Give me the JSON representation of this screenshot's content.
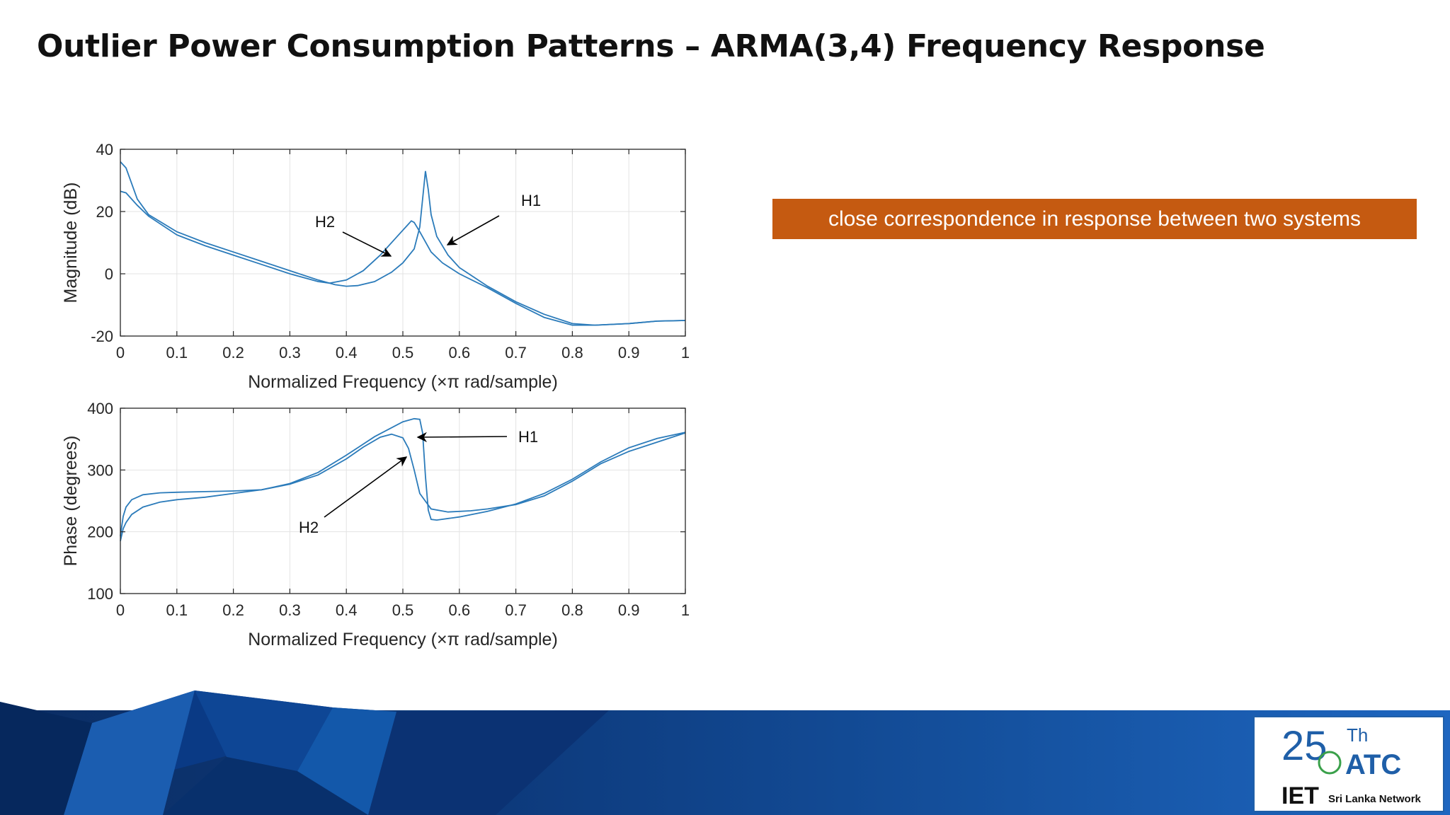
{
  "slide": {
    "title": "Outlier Power Consumption Patterns – ARMA(3,4) Frequency Response",
    "callout": "close correspondence in response between two systems"
  },
  "logo": {
    "number": "25",
    "superscript": "Th",
    "name": "ATC",
    "org": "IET",
    "network": "Sri Lanka Network"
  },
  "colors": {
    "series": "#2b7bba",
    "callout_bg": "#c55a11",
    "footer": "#1a5ca8"
  },
  "chart_data": [
    {
      "type": "line",
      "title": "",
      "xlabel": "Normalized Frequency  (×π rad/sample)",
      "ylabel": "Magnitude (dB)",
      "xlim": [
        0,
        1
      ],
      "ylim": [
        -20,
        40
      ],
      "xticks": [
        0,
        0.1,
        0.2,
        0.3,
        0.4,
        0.5,
        0.6,
        0.7,
        0.8,
        0.9,
        1
      ],
      "yticks": [
        -20,
        0,
        20,
        40
      ],
      "xtick_labels": [
        "0",
        "0.1",
        "0.2",
        "0.3",
        "0.4",
        "0.5",
        "0.6",
        "0.7",
        "0.8",
        "0.9",
        "1"
      ],
      "ytick_labels": [
        "-20",
        "0",
        "20",
        "40"
      ],
      "grid": true,
      "series": [
        {
          "x": [
            0,
            0.01,
            0.03,
            0.05,
            0.1,
            0.15,
            0.2,
            0.25,
            0.3,
            0.35,
            0.38,
            0.4,
            0.42,
            0.45,
            0.48,
            0.5,
            0.52,
            0.53,
            0.54,
            0.545,
            0.55,
            0.56,
            0.58,
            0.6,
            0.65,
            0.7,
            0.75,
            0.8,
            0.84,
            0.9,
            0.95,
            1.0
          ],
          "y": [
            36,
            34,
            24,
            19,
            13.5,
            10,
            7,
            4,
            1,
            -2,
            -3.5,
            -4,
            -3.8,
            -2.5,
            0.5,
            3.5,
            8,
            15,
            33,
            27,
            19,
            12,
            6,
            2,
            -4,
            -9,
            -13,
            -16,
            -16.5,
            -16,
            -15.2,
            -15
          ]
        },
        {
          "x": [
            0,
            0.01,
            0.03,
            0.05,
            0.1,
            0.15,
            0.2,
            0.25,
            0.3,
            0.35,
            0.37,
            0.4,
            0.43,
            0.46,
            0.49,
            0.51,
            0.515,
            0.52,
            0.53,
            0.55,
            0.57,
            0.6,
            0.65,
            0.7,
            0.75,
            0.8,
            0.84,
            0.9,
            0.95,
            1.0
          ],
          "y": [
            26.5,
            26,
            22,
            18.5,
            12.5,
            9,
            6,
            3,
            0,
            -2.5,
            -3,
            -2,
            1,
            6,
            12,
            16,
            17,
            16.5,
            13.5,
            7,
            3.5,
            0,
            -4.5,
            -9.5,
            -14,
            -16.5,
            -16.5,
            -16,
            -15.2,
            -15
          ]
        }
      ],
      "annotations": [
        "H2",
        "H1"
      ]
    },
    {
      "type": "line",
      "title": "",
      "xlabel": "Normalized Frequency  (×π rad/sample)",
      "ylabel": "Phase (degrees)",
      "xlim": [
        0,
        1
      ],
      "ylim": [
        100,
        400
      ],
      "xticks": [
        0,
        0.1,
        0.2,
        0.3,
        0.4,
        0.5,
        0.6,
        0.7,
        0.8,
        0.9,
        1
      ],
      "yticks": [
        100,
        200,
        300,
        400
      ],
      "xtick_labels": [
        "0",
        "0.1",
        "0.2",
        "0.3",
        "0.4",
        "0.5",
        "0.6",
        "0.7",
        "0.8",
        "0.9",
        "1"
      ],
      "ytick_labels": [
        "100",
        "200",
        "300",
        "400"
      ],
      "grid": true,
      "series": [
        {
          "x": [
            0,
            0.005,
            0.01,
            0.02,
            0.04,
            0.07,
            0.1,
            0.15,
            0.2,
            0.25,
            0.3,
            0.35,
            0.4,
            0.45,
            0.5,
            0.52,
            0.53,
            0.535,
            0.54,
            0.545,
            0.55,
            0.56,
            0.6,
            0.65,
            0.7,
            0.75,
            0.8,
            0.85,
            0.9,
            0.95,
            1.0
          ],
          "y": [
            185,
            205,
            215,
            228,
            240,
            248,
            252,
            256,
            262,
            268,
            278,
            296,
            324,
            354,
            378,
            383,
            382,
            360,
            290,
            235,
            220,
            219,
            224,
            233,
            245,
            262,
            285,
            313,
            336,
            351,
            361
          ]
        },
        {
          "x": [
            0,
            0.005,
            0.01,
            0.02,
            0.04,
            0.07,
            0.1,
            0.15,
            0.2,
            0.25,
            0.3,
            0.35,
            0.4,
            0.43,
            0.46,
            0.48,
            0.5,
            0.51,
            0.52,
            0.53,
            0.55,
            0.58,
            0.62,
            0.65,
            0.7,
            0.75,
            0.8,
            0.85,
            0.9,
            0.95,
            1.0
          ],
          "y": [
            193,
            225,
            240,
            252,
            260,
            263,
            264,
            265,
            266,
            268,
            277,
            292,
            318,
            337,
            353,
            358,
            352,
            335,
            300,
            262,
            237,
            232,
            234,
            237,
            244,
            258,
            282,
            310,
            330,
            345,
            360
          ]
        }
      ],
      "annotations": [
        "H1",
        "H2"
      ]
    }
  ]
}
